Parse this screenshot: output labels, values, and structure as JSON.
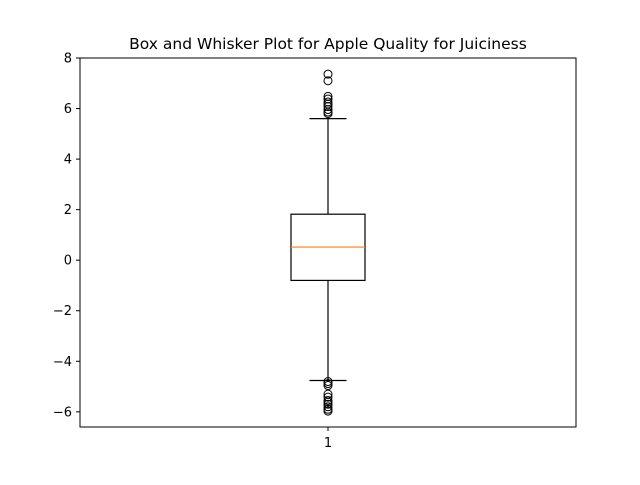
{
  "chart_data": {
    "type": "box",
    "title": "Box and Whisker Plot for Apple Quality for Juiciness",
    "xlabel": "",
    "ylabel": "",
    "categories": [
      "1"
    ],
    "ylim": [
      -6.6,
      8.0
    ],
    "yticks": [
      -6,
      -4,
      -2,
      0,
      2,
      4,
      6,
      8
    ],
    "ytick_labels": [
      "−6",
      "−4",
      "−2",
      "0",
      "2",
      "4",
      "6",
      "8"
    ],
    "grid": false,
    "boxes": [
      {
        "category": "1",
        "whisker_low": -4.76,
        "q1": -0.8,
        "median": 0.52,
        "q3": 1.82,
        "whisker_high": 5.6,
        "outliers": [
          7.36,
          7.1,
          6.48,
          6.38,
          6.26,
          6.18,
          6.08,
          5.96,
          5.86,
          5.8,
          -4.8,
          -4.88,
          -4.96,
          -5.3,
          -5.42,
          -5.55,
          -5.62,
          -5.7,
          -5.8,
          -5.9,
          -5.97
        ]
      }
    ],
    "colors": {
      "box": "#000000",
      "median": "#ff7f0e",
      "outlier": "#000000"
    }
  }
}
